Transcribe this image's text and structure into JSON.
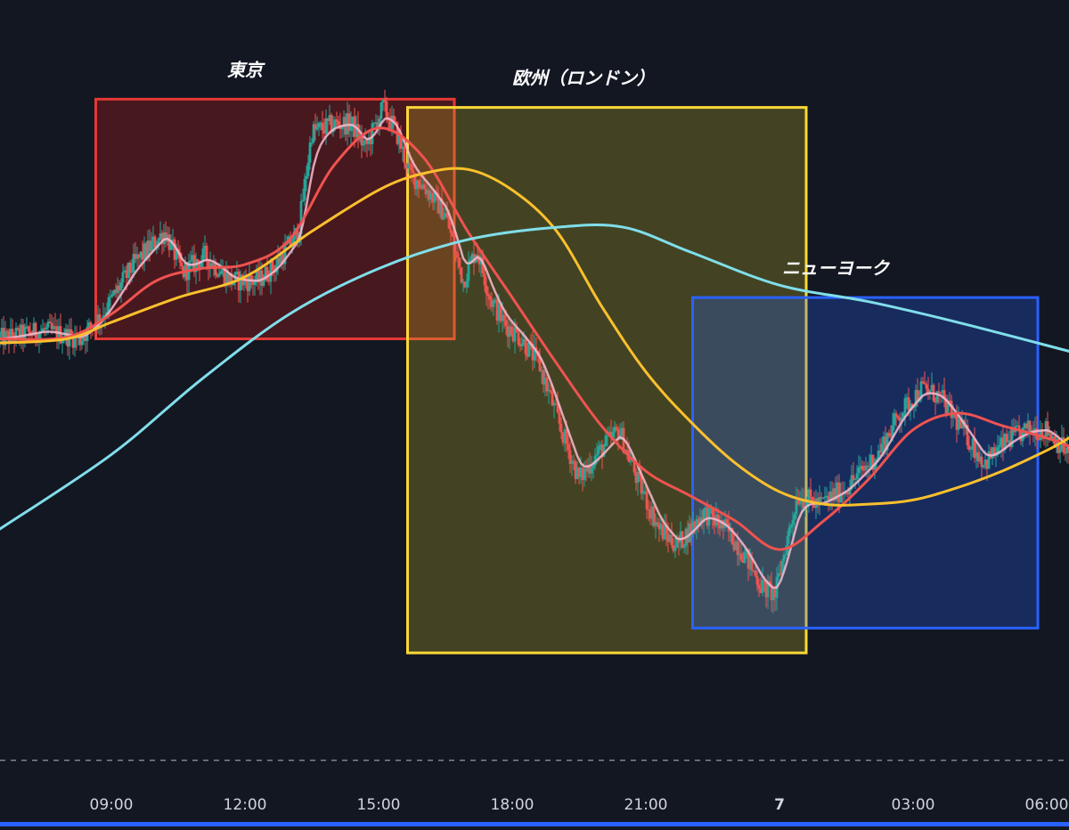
{
  "chart_data": {
    "type": "candlestick",
    "title": "",
    "grid": false,
    "legend": "none",
    "x_domain": [
      6.5,
      30.5
    ],
    "y_domain": [
      0,
      100
    ],
    "x_ticks": [
      {
        "value": 9,
        "label": "09:00",
        "bold": false
      },
      {
        "value": 12,
        "label": "12:00",
        "bold": false
      },
      {
        "value": 15,
        "label": "15:00",
        "bold": false
      },
      {
        "value": 18,
        "label": "18:00",
        "bold": false
      },
      {
        "value": 21,
        "label": "21:00",
        "bold": false
      },
      {
        "value": 24,
        "label": "7",
        "bold": true
      },
      {
        "value": 27,
        "label": "03:00",
        "bold": false
      },
      {
        "value": 30,
        "label": "06:00",
        "bold": false
      }
    ],
    "sessions": [
      {
        "name": "東京",
        "start": 8.65,
        "end": 16.7,
        "high": 88,
        "low": 59,
        "border": "#e53935",
        "fill": "rgba(183,28,28,0.33)"
      },
      {
        "name": "欧州（ロンドン）",
        "start": 15.65,
        "end": 24.6,
        "high": 87,
        "low": 21,
        "border": "#fdd835",
        "fill": "rgba(200,190,40,0.27)"
      },
      {
        "name": "ニューヨーク",
        "start": 22.05,
        "end": 29.8,
        "high": 64,
        "low": 24,
        "border": "#2962ff",
        "fill": "rgba(41,98,255,0.27)"
      }
    ],
    "price_path": [
      [
        6.5,
        59
      ],
      [
        7.5,
        60
      ],
      [
        8.3,
        59
      ],
      [
        8.8,
        62
      ],
      [
        9.5,
        68
      ],
      [
        10.2,
        72
      ],
      [
        10.6,
        67
      ],
      [
        11.1,
        69
      ],
      [
        11.7,
        66
      ],
      [
        12.3,
        66
      ],
      [
        12.7,
        68
      ],
      [
        13.2,
        72
      ],
      [
        13.5,
        84
      ],
      [
        14.0,
        85
      ],
      [
        14.4,
        85
      ],
      [
        14.7,
        82
      ],
      [
        15.1,
        87
      ],
      [
        15.4,
        84
      ],
      [
        15.7,
        79
      ],
      [
        16.1,
        77
      ],
      [
        16.5,
        74
      ],
      [
        16.9,
        66
      ],
      [
        17.2,
        70
      ],
      [
        17.5,
        64
      ],
      [
        17.8,
        61
      ],
      [
        18.2,
        59
      ],
      [
        18.6,
        56
      ],
      [
        19.1,
        48
      ],
      [
        19.5,
        42
      ],
      [
        19.9,
        45
      ],
      [
        20.4,
        48
      ],
      [
        20.8,
        42
      ],
      [
        21.3,
        36
      ],
      [
        21.7,
        34
      ],
      [
        22.3,
        38
      ],
      [
        22.8,
        36
      ],
      [
        23.2,
        33
      ],
      [
        23.6,
        29
      ],
      [
        23.9,
        28
      ],
      [
        24.1,
        33
      ],
      [
        24.4,
        40
      ],
      [
        24.9,
        39
      ],
      [
        25.5,
        41
      ],
      [
        26.2,
        45
      ],
      [
        26.7,
        50
      ],
      [
        27.2,
        53
      ],
      [
        27.6,
        52
      ],
      [
        28.1,
        48
      ],
      [
        28.6,
        44
      ],
      [
        29.2,
        47
      ],
      [
        29.6,
        48
      ],
      [
        30.0,
        48
      ],
      [
        30.5,
        45
      ]
    ],
    "moving_averages": [
      {
        "color": "#ef5350",
        "points": [
          [
            6.5,
            59
          ],
          [
            8.0,
            59.2
          ],
          [
            9.0,
            62
          ],
          [
            10.0,
            66
          ],
          [
            11.0,
            67.5
          ],
          [
            12.0,
            68
          ],
          [
            13.0,
            71
          ],
          [
            14.0,
            80
          ],
          [
            15.0,
            84.5
          ],
          [
            16.0,
            81
          ],
          [
            17.0,
            72
          ],
          [
            18.0,
            64
          ],
          [
            19.0,
            56
          ],
          [
            20.0,
            48.5
          ],
          [
            21.0,
            43
          ],
          [
            22.0,
            40
          ],
          [
            23.0,
            37
          ],
          [
            24.0,
            33.5
          ],
          [
            25.0,
            37
          ],
          [
            26.0,
            42
          ],
          [
            27.0,
            48
          ],
          [
            28.0,
            50
          ],
          [
            29.0,
            48.5
          ],
          [
            30.0,
            47
          ],
          [
            30.5,
            46
          ]
        ]
      },
      {
        "color": "#fbc02d",
        "points": [
          [
            6.5,
            58.5
          ],
          [
            8.0,
            59
          ],
          [
            9.0,
            61
          ],
          [
            10.5,
            64
          ],
          [
            12.0,
            66.5
          ],
          [
            13.5,
            72
          ],
          [
            15.0,
            77
          ],
          [
            16.0,
            79
          ],
          [
            17.0,
            79.5
          ],
          [
            18.0,
            77
          ],
          [
            19.0,
            72
          ],
          [
            20.0,
            63
          ],
          [
            21.0,
            55
          ],
          [
            22.0,
            49
          ],
          [
            23.0,
            44
          ],
          [
            24.0,
            40.5
          ],
          [
            25.0,
            39
          ],
          [
            26.0,
            39
          ],
          [
            27.0,
            39.5
          ],
          [
            28.0,
            41
          ],
          [
            29.0,
            43
          ],
          [
            30.0,
            45.5
          ],
          [
            30.5,
            47
          ]
        ]
      },
      {
        "color": "#80deea",
        "points": [
          [
            6.5,
            36
          ],
          [
            9.0,
            45
          ],
          [
            11.0,
            54
          ],
          [
            13.0,
            62
          ],
          [
            15.0,
            67.5
          ],
          [
            17.0,
            71
          ],
          [
            19.0,
            72.5
          ],
          [
            20.5,
            72.5
          ],
          [
            22.0,
            69.5
          ],
          [
            24.0,
            65.5
          ],
          [
            26.0,
            63.5
          ],
          [
            28.0,
            61
          ],
          [
            30.5,
            57.5
          ]
        ]
      }
    ]
  },
  "dashed_line": {
    "value": 8
  }
}
